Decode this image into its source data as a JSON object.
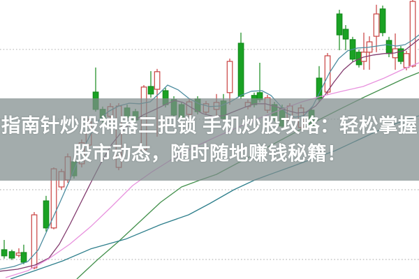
{
  "headline": {
    "line1": "指南针炒股神器三把锁 手机炒股攻略：轻松掌握",
    "line2": "股市动态，随时随地赚钱秘籍！",
    "text_color": "#ffffff",
    "band_color": "rgba(128,140,140,0.72)"
  },
  "chart_data": {
    "type": "candlestick",
    "title": "",
    "xlabel": "",
    "ylabel": "",
    "xlim": [
      0,
      600
    ],
    "ylim": [
      0,
      100
    ],
    "grid": "dotted-horizontal",
    "grid_prices": [
      82.3,
      57.3,
      32,
      7
    ],
    "grid_color": "#c4c4c4",
    "palette": {
      "up_stroke": "#c8403f",
      "up_fill": "#ffffff",
      "down_stroke": "#148a1c",
      "down_fill": "#1aa224"
    },
    "series": [
      {
        "name": "MA5",
        "color": "#4d8da0",
        "points": [
          [
            0,
            3.5
          ],
          [
            20,
            4.5
          ],
          [
            40,
            6.3
          ],
          [
            55,
            10.5
          ],
          [
            70,
            18.8
          ],
          [
            85,
            27
          ],
          [
            100,
            35.5
          ],
          [
            115,
            44.5
          ],
          [
            130,
            52
          ],
          [
            142,
            57
          ],
          [
            155,
            60
          ],
          [
            170,
            62
          ],
          [
            185,
            63
          ],
          [
            200,
            62.8
          ],
          [
            215,
            63.5
          ],
          [
            228,
            66.5
          ],
          [
            240,
            69.5
          ],
          [
            255,
            67.8
          ],
          [
            270,
            64.8
          ],
          [
            285,
            62.8
          ],
          [
            300,
            61.8
          ],
          [
            315,
            62
          ],
          [
            330,
            63.5
          ],
          [
            345,
            65.8
          ],
          [
            360,
            67.3
          ],
          [
            375,
            67.5
          ],
          [
            388,
            65.8
          ],
          [
            400,
            62.5
          ],
          [
            410,
            59.5
          ],
          [
            422,
            58
          ],
          [
            435,
            58.5
          ],
          [
            448,
            62
          ],
          [
            460,
            68
          ],
          [
            472,
            74
          ],
          [
            485,
            79
          ],
          [
            498,
            81.8
          ],
          [
            512,
            82.8
          ],
          [
            526,
            83
          ],
          [
            540,
            83.5
          ],
          [
            554,
            84
          ],
          [
            568,
            83.5
          ],
          [
            580,
            84
          ],
          [
            590,
            85.5
          ],
          [
            600,
            87.5
          ]
        ]
      },
      {
        "name": "MA10",
        "color": "#823a6e",
        "points": [
          [
            0,
            2.8
          ],
          [
            25,
            3.5
          ],
          [
            50,
            5
          ],
          [
            70,
            7.5
          ],
          [
            85,
            12.5
          ],
          [
            100,
            19.5
          ],
          [
            115,
            27
          ],
          [
            130,
            34.5
          ],
          [
            145,
            41.8
          ],
          [
            160,
            48.3
          ],
          [
            175,
            53
          ],
          [
            190,
            56.5
          ],
          [
            205,
            58.8
          ],
          [
            220,
            60.5
          ],
          [
            235,
            62.3
          ],
          [
            250,
            64
          ],
          [
            262,
            63.3
          ],
          [
            275,
            61.3
          ],
          [
            290,
            59.3
          ],
          [
            305,
            58.3
          ],
          [
            320,
            58.5
          ],
          [
            335,
            60
          ],
          [
            350,
            61.5
          ],
          [
            365,
            62.8
          ],
          [
            380,
            62.8
          ],
          [
            395,
            61.8
          ],
          [
            410,
            60.5
          ],
          [
            425,
            59.5
          ],
          [
            438,
            59.8
          ],
          [
            452,
            62
          ],
          [
            465,
            65.8
          ],
          [
            478,
            70.5
          ],
          [
            492,
            75
          ],
          [
            505,
            77.8
          ],
          [
            520,
            79.5
          ],
          [
            535,
            80.3
          ],
          [
            550,
            80.8
          ],
          [
            565,
            81
          ],
          [
            580,
            82
          ],
          [
            600,
            86
          ]
        ]
      },
      {
        "name": "MA20",
        "color": "#e892de",
        "points": [
          [
            8,
            0.5
          ],
          [
            40,
            3
          ],
          [
            70,
            7.3
          ],
          [
            100,
            12.5
          ],
          [
            130,
            18.8
          ],
          [
            160,
            26
          ],
          [
            190,
            33.5
          ],
          [
            217,
            38.3
          ],
          [
            250,
            43.5
          ],
          [
            280,
            47.5
          ],
          [
            310,
            51
          ],
          [
            340,
            54.3
          ],
          [
            370,
            57.5
          ],
          [
            400,
            60.5
          ],
          [
            430,
            63.3
          ],
          [
            460,
            65.5
          ],
          [
            490,
            67.3
          ],
          [
            520,
            69
          ],
          [
            550,
            72
          ],
          [
            580,
            75.5
          ],
          [
            600,
            77.5
          ]
        ]
      },
      {
        "name": "MA30",
        "color": "#43904c",
        "points": [
          [
            110,
            0
          ],
          [
            140,
            7
          ],
          [
            170,
            13.5
          ],
          [
            200,
            20.5
          ],
          [
            230,
            27.5
          ],
          [
            260,
            33
          ],
          [
            287,
            35.5
          ],
          [
            310,
            37.5
          ],
          [
            340,
            41.5
          ],
          [
            370,
            45.5
          ],
          [
            400,
            49.5
          ],
          [
            430,
            53.5
          ],
          [
            460,
            57.5
          ],
          [
            490,
            61.3
          ],
          [
            520,
            65
          ],
          [
            550,
            68.5
          ],
          [
            580,
            72
          ],
          [
            600,
            74
          ]
        ]
      },
      {
        "name": "MA60",
        "color": "#2e7f8c",
        "points": [
          [
            15,
            0
          ],
          [
            50,
            3
          ],
          [
            90,
            6.5
          ],
          [
            130,
            10.8
          ],
          [
            180,
            14.3
          ],
          [
            230,
            19.5
          ],
          [
            270,
            23
          ],
          [
            300,
            27
          ],
          [
            335,
            32
          ],
          [
            365,
            35.5
          ],
          [
            390,
            37.8
          ],
          [
            420,
            40.5
          ],
          [
            450,
            43.3
          ],
          [
            480,
            46
          ],
          [
            510,
            49.5
          ],
          [
            540,
            53
          ],
          [
            570,
            56
          ],
          [
            600,
            58.5
          ]
        ]
      }
    ],
    "candles": [
      {
        "x": 6,
        "o": 10.5,
        "h": 14,
        "l": 7.3,
        "c": 8.3
      },
      {
        "x": 17,
        "o": 9.8,
        "h": 10.5,
        "l": 6.8,
        "c": 7.5
      },
      {
        "x": 27,
        "o": 8.5,
        "h": 11,
        "l": 7.8,
        "c": 9.3
      },
      {
        "x": 34,
        "o": 9.5,
        "h": 12.3,
        "l": 5.3,
        "c": 6
      },
      {
        "x": 49,
        "o": 4,
        "h": 24,
        "l": 3.5,
        "c": 23
      },
      {
        "x": 66,
        "o": 28,
        "h": 29.8,
        "l": 17,
        "c": 18.3
      },
      {
        "x": 77,
        "o": 18.3,
        "h": 40,
        "l": 17.8,
        "c": 39.5
      },
      {
        "x": 88,
        "o": 33,
        "h": 39.5,
        "l": 32,
        "c": 38.5
      },
      {
        "x": 97,
        "o": 35.5,
        "h": 45,
        "l": 34.5,
        "c": 43.8
      },
      {
        "x": 106,
        "o": 42,
        "h": 43,
        "l": 36,
        "c": 37
      },
      {
        "x": 117,
        "o": 41.3,
        "h": 50,
        "l": 40,
        "c": 48.8
      },
      {
        "x": 127,
        "o": 48,
        "h": 57.5,
        "l": 47,
        "c": 56.3
      },
      {
        "x": 137,
        "o": 67,
        "h": 75.8,
        "l": 60,
        "c": 60.8
      },
      {
        "x": 147,
        "o": 60.8,
        "h": 61.8,
        "l": 56,
        "c": 57
      },
      {
        "x": 158,
        "o": 58.3,
        "h": 63,
        "l": 57.5,
        "c": 61.8
      },
      {
        "x": 170,
        "o": 40,
        "h": 63,
        "l": 39,
        "c": 62
      },
      {
        "x": 182,
        "o": 61.3,
        "h": 62.5,
        "l": 57,
        "c": 58
      },
      {
        "x": 194,
        "o": 60,
        "h": 61,
        "l": 56,
        "c": 57
      },
      {
        "x": 206,
        "o": 46.3,
        "h": 69.5,
        "l": 45.5,
        "c": 68.8
      },
      {
        "x": 216,
        "o": 69,
        "h": 74.5,
        "l": 65,
        "c": 66.3
      },
      {
        "x": 225,
        "o": 68,
        "h": 75.3,
        "l": 51,
        "c": 74.3
      },
      {
        "x": 237,
        "o": 67.5,
        "h": 68.5,
        "l": 61.5,
        "c": 62.5
      },
      {
        "x": 249,
        "o": 64.3,
        "h": 65.5,
        "l": 57.8,
        "c": 58.8
      },
      {
        "x": 260,
        "o": 62.5,
        "h": 63.5,
        "l": 57,
        "c": 58
      },
      {
        "x": 271,
        "o": 59,
        "h": 64.5,
        "l": 58,
        "c": 63.5
      },
      {
        "x": 283,
        "o": 64.5,
        "h": 65.5,
        "l": 59,
        "c": 60
      },
      {
        "x": 295,
        "o": 59.8,
        "h": 63.8,
        "l": 58.8,
        "c": 62.8
      },
      {
        "x": 310,
        "o": 60.8,
        "h": 66.3,
        "l": 58.3,
        "c": 63.3
      },
      {
        "x": 320,
        "o": 63.8,
        "h": 66.3,
        "l": 56.8,
        "c": 57.5
      },
      {
        "x": 329,
        "o": 66.8,
        "h": 79,
        "l": 62.5,
        "c": 78
      },
      {
        "x": 345,
        "o": 84.5,
        "h": 88.3,
        "l": 64.5,
        "c": 65.5
      },
      {
        "x": 355,
        "o": 61.8,
        "h": 64.3,
        "l": 60.8,
        "c": 63.3
      },
      {
        "x": 364,
        "o": 65.8,
        "h": 66.8,
        "l": 61.5,
        "c": 62.5
      },
      {
        "x": 372,
        "o": 66.8,
        "h": 77.5,
        "l": 63.3,
        "c": 64.3
      },
      {
        "x": 383,
        "o": 60.5,
        "h": 66,
        "l": 59.5,
        "c": 65
      },
      {
        "x": 393,
        "o": 62.5,
        "h": 63.5,
        "l": 56.5,
        "c": 57.5
      },
      {
        "x": 404,
        "o": 61.3,
        "h": 62.5,
        "l": 53.8,
        "c": 54.8
      },
      {
        "x": 415,
        "o": 57,
        "h": 63,
        "l": 56,
        "c": 62
      },
      {
        "x": 431,
        "o": 54.3,
        "h": 62.5,
        "l": 53.3,
        "c": 61.3
      },
      {
        "x": 446,
        "o": 60.5,
        "h": 61.5,
        "l": 54,
        "c": 55
      },
      {
        "x": 457,
        "o": 72,
        "h": 76.3,
        "l": 63.5,
        "c": 64.5
      },
      {
        "x": 469,
        "o": 67,
        "h": 81,
        "l": 66,
        "c": 80
      },
      {
        "x": 486,
        "o": 95,
        "h": 96.5,
        "l": 82,
        "c": 87.5
      },
      {
        "x": 495,
        "o": 89.5,
        "h": 91,
        "l": 82,
        "c": 86
      },
      {
        "x": 505,
        "o": 85.8,
        "h": 86.8,
        "l": 77.8,
        "c": 78.8
      },
      {
        "x": 514,
        "o": 81.3,
        "h": 82.3,
        "l": 75.8,
        "c": 76.8
      },
      {
        "x": 521,
        "o": 78,
        "h": 88.3,
        "l": 75,
        "c": 81.3
      },
      {
        "x": 529,
        "o": 81.3,
        "h": 87,
        "l": 75,
        "c": 85
      },
      {
        "x": 539,
        "o": 87,
        "h": 98.3,
        "l": 81.3,
        "c": 95
      },
      {
        "x": 548,
        "o": 96.8,
        "h": 98,
        "l": 87,
        "c": 88.3
      },
      {
        "x": 557,
        "o": 85.5,
        "h": 86.8,
        "l": 79.5,
        "c": 80.8
      },
      {
        "x": 566,
        "o": 79.3,
        "h": 88,
        "l": 75,
        "c": 82.5
      },
      {
        "x": 574,
        "o": 82.5,
        "h": 83.5,
        "l": 77,
        "c": 78
      },
      {
        "x": 582,
        "o": 75.8,
        "h": 81.8,
        "l": 74.8,
        "c": 80.8
      },
      {
        "x": 591,
        "o": 76.3,
        "h": 100,
        "l": 75.8,
        "c": 99.5
      }
    ]
  }
}
